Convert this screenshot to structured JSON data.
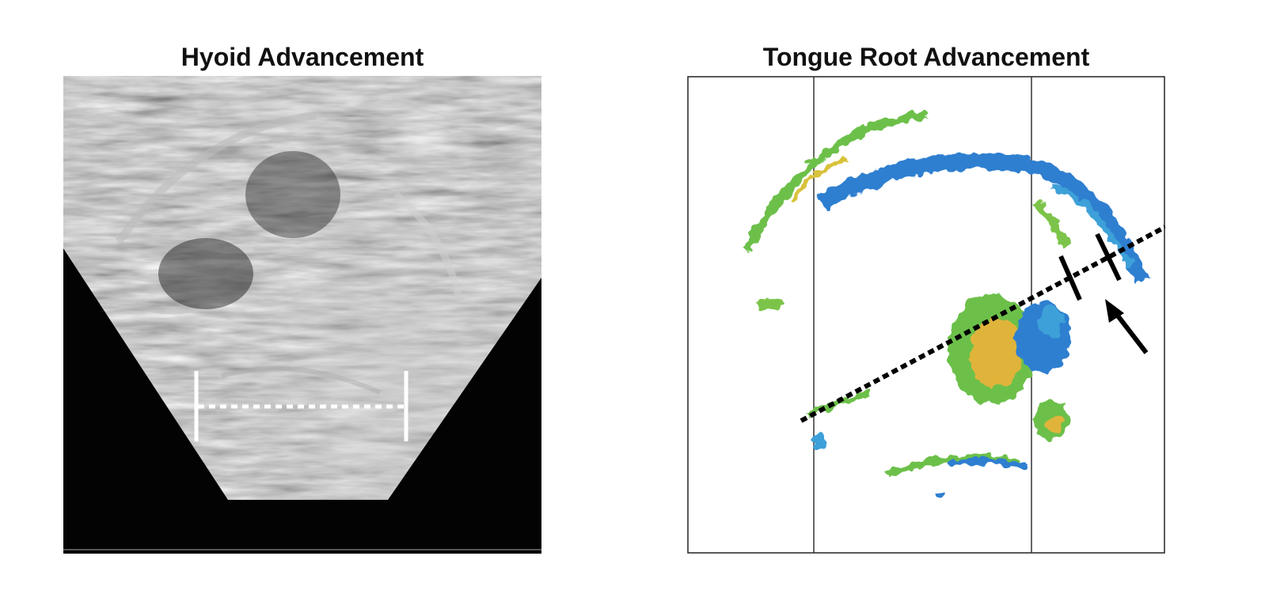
{
  "panels": [
    {
      "title": "Hyoid Advancement",
      "image": "grayscale ultrasound sector scan with hyoid displacement measurement"
    },
    {
      "title": "Tongue Root Advancement",
      "image": "color-coded ultrasound map with dotted measurement line and arrow"
    }
  ],
  "colors": {
    "blue": "#2f7fd0",
    "green": "#5bbd4a",
    "yellow": "#e2c23a",
    "orange": "#e5a33a",
    "frame": "#222222"
  }
}
